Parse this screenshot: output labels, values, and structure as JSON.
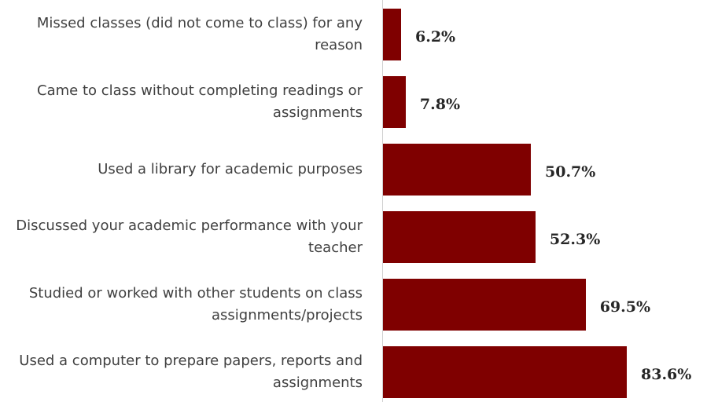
{
  "chart_data": {
    "type": "bar",
    "orientation": "horizontal",
    "categories": [
      "Missed classes (did not come to class) for any reason",
      "Came to class without completing readings or assignments",
      "Used a library for academic purposes",
      "Discussed your academic performance with your teacher",
      "Studied or worked with other students on class assignments/projects",
      "Used a computer to prepare papers, reports and assignments"
    ],
    "values": [
      6.2,
      7.8,
      50.7,
      52.3,
      69.5,
      83.6
    ],
    "value_labels": [
      "6.2%",
      "7.8%",
      "50.7%",
      "52.3%",
      "69.5%",
      "83.6%"
    ],
    "color": "#7f0000"
  }
}
